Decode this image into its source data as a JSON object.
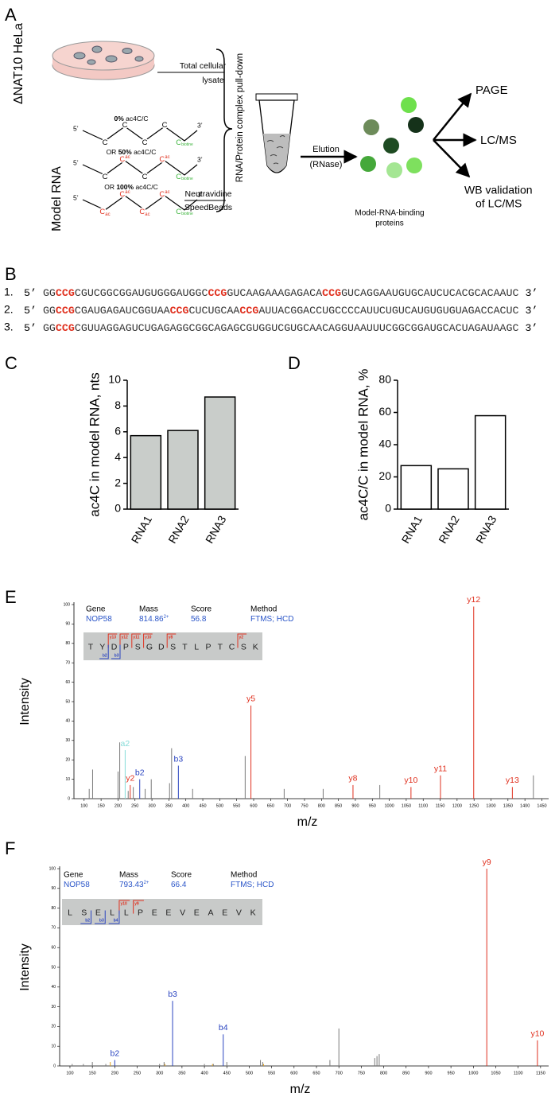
{
  "panel_labels": [
    "A",
    "B",
    "C",
    "D",
    "E",
    "F"
  ],
  "panel_a": {
    "cell_line": "ΔNAT10 HeLa",
    "lysate": [
      "Total cellular",
      "lysate"
    ],
    "model_rna": "Model RNA",
    "rna_options": [
      {
        "pct": "0%",
        "unit": "ac4C/C"
      },
      {
        "prefix": "OR",
        "pct": "50%",
        "unit": "ac4C/C"
      },
      {
        "prefix": "OR",
        "pct": "100%",
        "unit": "ac4C/C"
      }
    ],
    "five_prime": "5’",
    "three_prime": "3’",
    "base": "C",
    "mod": "ac",
    "biotin": "biotine",
    "beads": [
      "Neutravidine",
      "SpeedBeads"
    ],
    "pulldown": "RNA/Protein complex pull-down",
    "elution": [
      "Elution",
      "(RNase)"
    ],
    "proteins": [
      "Model-RNA-binding",
      "proteins"
    ],
    "page": "PAGE",
    "lcms": "LC/MS",
    "wb": [
      "WB validation",
      "of LC/MS"
    ]
  },
  "panel_b": {
    "five_prime": "5’",
    "three_prime": "3’",
    "sequences": [
      {
        "num": "1.",
        "parts": [
          "GG",
          "CCG",
          "CGUCGGCGGAUGUGGGAUGGC",
          "CCG",
          "GUCAAGAAAGAGACA",
          "CCG",
          "GUCAGGAAUGUGCAUCUCACGCACAAUC"
        ]
      },
      {
        "num": "2.",
        "parts": [
          "GG",
          "CCG",
          "CGAUGAGAUCGGUAA",
          "CCG",
          "CUCUGCAA",
          "CCG",
          "AUUACGGACCUGCCCCAUUCUGUCAUGUGUGUAGACCACUC"
        ]
      },
      {
        "num": "3.",
        "parts": [
          "GG",
          "CCG",
          "CGUUAGGAGUCUGAGAGGCGGCAGAGCGUGGUCGUGCAACAGGUAAUUUCGGCGGAUGCACUAGAUAAGC"
        ]
      }
    ]
  },
  "chart_data": [
    {
      "type": "bar",
      "ylabel": "ac4C in model RNA, nts",
      "categories": [
        "RNA1",
        "RNA2",
        "RNA3"
      ],
      "values": [
        5.7,
        6.1,
        8.7
      ],
      "color": "#c9cdca",
      "ylim": [
        0,
        10
      ],
      "yticks": [
        0,
        2,
        4,
        6,
        8,
        10
      ]
    },
    {
      "type": "bar",
      "ylabel": "ac4C/C in model RNA, %",
      "categories": [
        "RNA1",
        "RNA2",
        "RNA3"
      ],
      "values": [
        27,
        25,
        58
      ],
      "color": "#ffffff",
      "ylim": [
        0,
        80
      ],
      "yticks": [
        0,
        20,
        40,
        60,
        80
      ]
    },
    {
      "type": "spectrum",
      "xlabel": "m/z",
      "ylabel": "Intensity",
      "info": {
        "headers": [
          "Gene",
          "Mass",
          "Score",
          "Method"
        ],
        "values": [
          "NOP58",
          "814.86",
          "56.8",
          "FTMS; HCD"
        ],
        "charge": "2+"
      },
      "peptide": [
        "T",
        "Y",
        "D",
        "P",
        "S",
        "G",
        "D",
        "S",
        "T",
        "L",
        "P",
        "T",
        "C",
        "S",
        "K"
      ],
      "fragments": {
        "y": [
          "y13",
          "y12",
          "y11",
          "y10",
          "y8",
          "y2"
        ],
        "b": [
          "b2",
          "b3"
        ]
      },
      "xlim": [
        70,
        1470
      ],
      "xticks": [
        100,
        150,
        200,
        250,
        300,
        350,
        400,
        450,
        500,
        550,
        600,
        650,
        700,
        750,
        800,
        850,
        900,
        950,
        1000,
        1050,
        1100,
        1150,
        1200,
        1250,
        1300,
        1350,
        1400,
        1450
      ],
      "ylim": [
        0,
        100
      ],
      "yticks": [
        0,
        10,
        20,
        30,
        40,
        50,
        60,
        70,
        80,
        90,
        100
      ],
      "peaks": {
        "color": "#7a7a7a",
        "mz": [
          115,
          125,
          200,
          205,
          230,
          245,
          280,
          298,
          352,
          358,
          420,
          575,
          690,
          805,
          972,
          1425
        ],
        "intensity": [
          5,
          15,
          14,
          29,
          4,
          6,
          5,
          10,
          8,
          26,
          5,
          22,
          5,
          5,
          7,
          12
        ]
      },
      "ions": {
        "labels": [
          "a2",
          "y2",
          "b2",
          "b3",
          "y5",
          "y8",
          "y10",
          "y11",
          "y12",
          "y13"
        ],
        "mz": [
          221,
          236,
          264,
          378,
          592,
          893,
          1064,
          1151,
          1249,
          1363
        ],
        "intensity": [
          25,
          7,
          10,
          17,
          48,
          7,
          6,
          12,
          99,
          6
        ],
        "colors": [
          "#86dcd8",
          "#e0301e",
          "#2a44c0",
          "#2a44c0",
          "#e0301e",
          "#e0301e",
          "#e0301e",
          "#e0301e",
          "#e0301e",
          "#e0301e"
        ]
      }
    },
    {
      "type": "spectrum",
      "xlabel": "m/z",
      "ylabel": "Intensity",
      "info": {
        "headers": [
          "Gene",
          "Mass",
          "Score",
          "Method"
        ],
        "values": [
          "NOP58",
          "793.43",
          "66.4",
          "FTMS; HCD"
        ],
        "charge": "2+"
      },
      "peptide": [
        "L",
        "S",
        "E",
        "L",
        "L",
        "P",
        "E",
        "E",
        "V",
        "E",
        "A",
        "E",
        "V",
        "K"
      ],
      "fragments": {
        "y": [
          "y10",
          "y9"
        ],
        "b": [
          "b2",
          "b3",
          "b4"
        ]
      },
      "xlim": [
        77,
        1168
      ],
      "xticks": [
        100,
        150,
        200,
        250,
        300,
        350,
        400,
        450,
        500,
        550,
        600,
        650,
        700,
        750,
        800,
        850,
        900,
        950,
        1000,
        1050,
        1100,
        1150
      ],
      "ylim": [
        0,
        100
      ],
      "yticks": [
        0,
        10,
        20,
        30,
        40,
        50,
        60,
        70,
        80,
        90,
        100
      ],
      "peaks": {
        "color": "#7a7a7a",
        "mz": [
          105,
          130,
          150,
          180,
          300,
          310,
          400,
          420,
          450,
          525,
          530,
          680,
          700,
          780,
          785,
          790
        ],
        "intensity": [
          1,
          1,
          2,
          1,
          1,
          2,
          1,
          1,
          2,
          3,
          2,
          3,
          19,
          4,
          5,
          6
        ]
      },
      "minor_ions": {
        "color": "#e0a020",
        "mz": [
          190,
          312,
          418,
          532
        ],
        "intensity": [
          2,
          1,
          1,
          1
        ]
      },
      "ions": {
        "labels": [
          "b2",
          "b3",
          "b4",
          "y9",
          "y10"
        ],
        "mz": [
          200,
          329,
          442,
          1030,
          1143
        ],
        "intensity": [
          3,
          33,
          16,
          100,
          13
        ],
        "colors": [
          "#2a44c0",
          "#2a44c0",
          "#2a44c0",
          "#e0301e",
          "#e0301e"
        ]
      }
    }
  ]
}
